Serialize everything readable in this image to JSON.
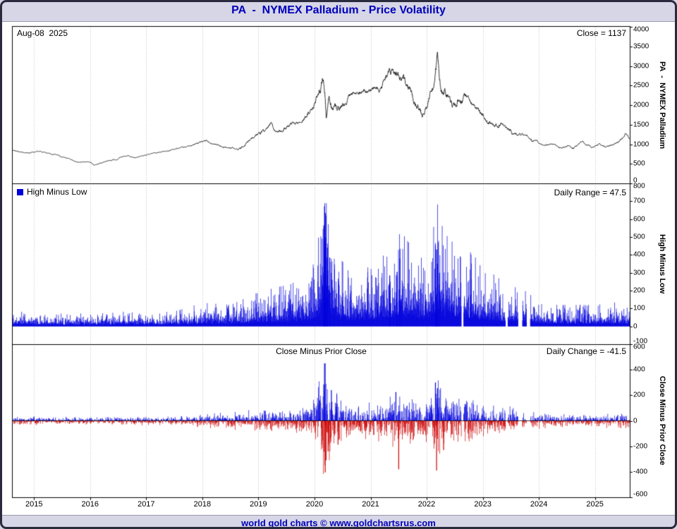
{
  "header": {
    "title": "PA  -  NYMEX Palladium - Price Volatility"
  },
  "footer": {
    "text": "world gold charts © www.goldchartsrus.com"
  },
  "annotations": {
    "date_label": "Aug-08  2025",
    "close_label": "Close = 1137",
    "legend_label": "High Minus Low",
    "daily_range_label": "Daily Range = 47.5",
    "panel3_title": "Close Minus Prior Close",
    "daily_change_label": "Daily Change = -41.5"
  },
  "side_labels": {
    "panel1": "PA  -  NYMEX Palladium",
    "panel2": "High Minus Low",
    "panel3": "Close Minus Prior Close"
  },
  "colors": {
    "title_text": "#0000bb",
    "title_bg": "#d6d6e6",
    "bar_blue": "#0000dd",
    "bar_red": "#cc0000",
    "price_line": "#000000",
    "grid": "#bcbcbc",
    "border": "#000000"
  },
  "chart_data": {
    "type": "line+bar+bar",
    "x_range": [
      2014.62,
      2025.62
    ],
    "x_ticks": [
      2015,
      2016,
      2017,
      2018,
      2019,
      2020,
      2021,
      2022,
      2023,
      2024,
      2025
    ],
    "panels": [
      {
        "name": "price",
        "type": "line",
        "title": "PA - NYMEX Palladium",
        "last_date": "Aug-08 2025",
        "last_close": 1137,
        "ylim": [
          0,
          4000
        ],
        "yticks": [
          4000,
          3500,
          3000,
          2500,
          2000,
          1500,
          1000,
          500,
          0
        ],
        "series_keypoints": [
          [
            2014.62,
            860
          ],
          [
            2014.75,
            805
          ],
          [
            2014.9,
            790
          ],
          [
            2015.0,
            800
          ],
          [
            2015.12,
            815
          ],
          [
            2015.25,
            770
          ],
          [
            2015.4,
            730
          ],
          [
            2015.55,
            660
          ],
          [
            2015.65,
            600
          ],
          [
            2015.78,
            545
          ],
          [
            2015.9,
            555
          ],
          [
            2016.0,
            545
          ],
          [
            2016.06,
            470
          ],
          [
            2016.17,
            510
          ],
          [
            2016.3,
            565
          ],
          [
            2016.45,
            605
          ],
          [
            2016.58,
            690
          ],
          [
            2016.68,
            710
          ],
          [
            2016.8,
            650
          ],
          [
            2016.92,
            700
          ],
          [
            2017.0,
            725
          ],
          [
            2017.12,
            765
          ],
          [
            2017.25,
            800
          ],
          [
            2017.38,
            840
          ],
          [
            2017.5,
            870
          ],
          [
            2017.63,
            915
          ],
          [
            2017.75,
            950
          ],
          [
            2017.88,
            1000
          ],
          [
            2018.0,
            1075
          ],
          [
            2018.08,
            1100
          ],
          [
            2018.17,
            1000
          ],
          [
            2018.3,
            965
          ],
          [
            2018.42,
            930
          ],
          [
            2018.55,
            900
          ],
          [
            2018.63,
            855
          ],
          [
            2018.72,
            925
          ],
          [
            2018.83,
            1080
          ],
          [
            2018.95,
            1230
          ],
          [
            2019.08,
            1330
          ],
          [
            2019.18,
            1440
          ],
          [
            2019.23,
            1550
          ],
          [
            2019.28,
            1360
          ],
          [
            2019.4,
            1330
          ],
          [
            2019.5,
            1450
          ],
          [
            2019.6,
            1520
          ],
          [
            2019.72,
            1540
          ],
          [
            2019.82,
            1680
          ],
          [
            2019.95,
            1900
          ],
          [
            2020.04,
            2150
          ],
          [
            2020.1,
            2320
          ],
          [
            2020.15,
            2680
          ],
          [
            2020.18,
            2480
          ],
          [
            2020.21,
            1650
          ],
          [
            2020.26,
            2250
          ],
          [
            2020.31,
            1900
          ],
          [
            2020.4,
            1920
          ],
          [
            2020.5,
            1960
          ],
          [
            2020.62,
            2200
          ],
          [
            2020.72,
            2320
          ],
          [
            2020.85,
            2330
          ],
          [
            2020.95,
            2350
          ],
          [
            2021.05,
            2390
          ],
          [
            2021.15,
            2340
          ],
          [
            2021.25,
            2640
          ],
          [
            2021.34,
            2950
          ],
          [
            2021.42,
            2850
          ],
          [
            2021.5,
            2780
          ],
          [
            2021.58,
            2680
          ],
          [
            2021.65,
            2500
          ],
          [
            2021.72,
            2400
          ],
          [
            2021.78,
            2050
          ],
          [
            2021.85,
            1950
          ],
          [
            2021.92,
            1760
          ],
          [
            2022.0,
            1900
          ],
          [
            2022.06,
            2280
          ],
          [
            2022.12,
            2420
          ],
          [
            2022.16,
            2850
          ],
          [
            2022.19,
            3300
          ],
          [
            2022.22,
            2650
          ],
          [
            2022.27,
            2250
          ],
          [
            2022.32,
            2450
          ],
          [
            2022.38,
            2200
          ],
          [
            2022.45,
            1950
          ],
          [
            2022.52,
            1950
          ],
          [
            2022.57,
            2150
          ],
          [
            2022.63,
            2080
          ],
          [
            2022.68,
            2240
          ],
          [
            2022.75,
            2120
          ],
          [
            2022.85,
            2060
          ],
          [
            2022.95,
            1880
          ],
          [
            2023.0,
            1790
          ],
          [
            2023.08,
            1620
          ],
          [
            2023.17,
            1480
          ],
          [
            2023.27,
            1440
          ],
          [
            2023.35,
            1520
          ],
          [
            2023.45,
            1400
          ],
          [
            2023.55,
            1260
          ],
          [
            2023.68,
            1240
          ],
          [
            2023.78,
            1190
          ],
          [
            2023.88,
            1070
          ],
          [
            2023.95,
            1140
          ],
          [
            2024.03,
            1020
          ],
          [
            2024.12,
            970
          ],
          [
            2024.22,
            1010
          ],
          [
            2024.32,
            940
          ],
          [
            2024.42,
            900
          ],
          [
            2024.52,
            960
          ],
          [
            2024.62,
            890
          ],
          [
            2024.72,
            1010
          ],
          [
            2024.78,
            1060
          ],
          [
            2024.88,
            975
          ],
          [
            2024.98,
            930
          ],
          [
            2025.08,
            985
          ],
          [
            2025.18,
            945
          ],
          [
            2025.28,
            965
          ],
          [
            2025.38,
            1040
          ],
          [
            2025.48,
            1110
          ],
          [
            2025.55,
            1280
          ],
          [
            2025.62,
            1137
          ]
        ]
      },
      {
        "name": "high_minus_low",
        "type": "bar",
        "title": "High Minus Low",
        "last_value": 47.5,
        "ylim": [
          -100,
          800
        ],
        "yticks": [
          800,
          700,
          600,
          500,
          400,
          300,
          200,
          100,
          0,
          -100
        ],
        "envelope_keypoints": [
          [
            2014.62,
            35
          ],
          [
            2015.5,
            30
          ],
          [
            2016.0,
            30
          ],
          [
            2016.5,
            35
          ],
          [
            2017.0,
            30
          ],
          [
            2017.5,
            35
          ],
          [
            2018.0,
            55
          ],
          [
            2018.5,
            50
          ],
          [
            2019.0,
            80
          ],
          [
            2019.3,
            90
          ],
          [
            2019.6,
            100
          ],
          [
            2019.9,
            130
          ],
          [
            2020.05,
            160
          ],
          [
            2020.15,
            420
          ],
          [
            2020.2,
            500
          ],
          [
            2020.3,
            260
          ],
          [
            2020.45,
            160
          ],
          [
            2020.6,
            130
          ],
          [
            2020.8,
            130
          ],
          [
            2021.0,
            140
          ],
          [
            2021.2,
            160
          ],
          [
            2021.4,
            200
          ],
          [
            2021.55,
            220
          ],
          [
            2021.7,
            190
          ],
          [
            2021.85,
            160
          ],
          [
            2022.0,
            160
          ],
          [
            2022.1,
            220
          ],
          [
            2022.17,
            320
          ],
          [
            2022.25,
            240
          ],
          [
            2022.4,
            200
          ],
          [
            2022.6,
            190
          ],
          [
            2022.8,
            170
          ],
          [
            2023.0,
            140
          ],
          [
            2023.2,
            120
          ],
          [
            2023.4,
            100
          ],
          [
            2023.6,
            90
          ],
          [
            2023.8,
            80
          ],
          [
            2024.0,
            60
          ],
          [
            2024.3,
            50
          ],
          [
            2024.6,
            50
          ],
          [
            2025.0,
            50
          ],
          [
            2025.3,
            55
          ],
          [
            2025.62,
            60
          ]
        ],
        "spikes": [
          [
            2020.165,
            565
          ],
          [
            2020.178,
            670
          ],
          [
            2020.19,
            635
          ],
          [
            2020.205,
            495
          ],
          [
            2020.23,
            440
          ],
          [
            2020.27,
            385
          ],
          [
            2021.34,
            285
          ],
          [
            2021.47,
            305
          ],
          [
            2021.52,
            380
          ],
          [
            2022.155,
            455
          ],
          [
            2022.175,
            430
          ],
          [
            2022.19,
            350
          ],
          [
            2022.23,
            300
          ]
        ]
      },
      {
        "name": "close_minus_prior_close",
        "type": "bar",
        "title": "Close Minus Prior Close",
        "last_value": -41.5,
        "ylim": [
          -600,
          600
        ],
        "yticks": [
          600,
          400,
          200,
          0,
          -200,
          -400,
          -600
        ],
        "envelope_keypoints": [
          [
            2014.62,
            26
          ],
          [
            2015.5,
            22
          ],
          [
            2016.5,
            26
          ],
          [
            2017.5,
            26
          ],
          [
            2018.0,
            40
          ],
          [
            2019.0,
            60
          ],
          [
            2019.6,
            75
          ],
          [
            2019.95,
            100
          ],
          [
            2020.15,
            320
          ],
          [
            2020.2,
            380
          ],
          [
            2020.3,
            200
          ],
          [
            2020.5,
            110
          ],
          [
            2020.8,
            100
          ],
          [
            2021.0,
            105
          ],
          [
            2021.2,
            120
          ],
          [
            2021.45,
            155
          ],
          [
            2021.6,
            165
          ],
          [
            2021.8,
            130
          ],
          [
            2022.0,
            120
          ],
          [
            2022.17,
            240
          ],
          [
            2022.3,
            180
          ],
          [
            2022.5,
            150
          ],
          [
            2022.8,
            130
          ],
          [
            2023.0,
            105
          ],
          [
            2023.3,
            85
          ],
          [
            2023.6,
            68
          ],
          [
            2024.0,
            45
          ],
          [
            2024.5,
            38
          ],
          [
            2025.0,
            38
          ],
          [
            2025.62,
            45
          ]
        ],
        "spikes": [
          [
            2020.165,
            285
          ],
          [
            2020.178,
            450
          ],
          [
            2020.19,
            -405
          ],
          [
            2020.205,
            -310
          ],
          [
            2020.24,
            -240
          ],
          [
            2020.3,
            240
          ],
          [
            2021.45,
            225
          ],
          [
            2021.5,
            -380
          ],
          [
            2022.155,
            300
          ],
          [
            2022.175,
            -390
          ],
          [
            2022.19,
            255
          ],
          [
            2022.3,
            -230
          ]
        ]
      }
    ]
  }
}
